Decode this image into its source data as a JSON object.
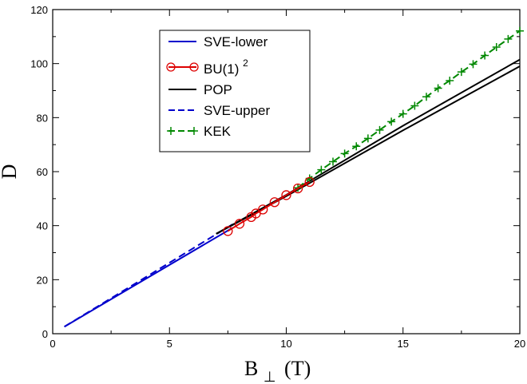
{
  "chart_data": {
    "type": "line",
    "title": "",
    "xlabel": "B",
    "xlabel_sub": "⊥",
    "xlabel_unit": "(T)",
    "ylabel": "D",
    "xlim": [
      0,
      20
    ],
    "ylim": [
      0,
      120
    ],
    "xticks": [
      0,
      5,
      10,
      15,
      20
    ],
    "yticks": [
      0,
      20,
      40,
      60,
      80,
      100,
      120
    ],
    "grid": false,
    "legend_position": "top-left (inside plot)",
    "series": [
      {
        "name": "SVE-lower",
        "color": "#0000cc",
        "style": "solid",
        "marker": "none",
        "x": [
          0.5,
          7.7
        ],
        "y": [
          2.6,
          39.2
        ]
      },
      {
        "name": "BU(1)",
        "name_sup": "2",
        "color": "#dd0000",
        "style": "solid",
        "marker": "circle",
        "x": [
          7.5,
          8.0,
          8.5,
          8.7,
          9.0,
          9.5,
          10.0,
          10.5,
          11.0
        ],
        "y": [
          38.0,
          40.7,
          43.2,
          44.5,
          46.0,
          48.7,
          51.3,
          53.8,
          56.2
        ]
      },
      {
        "name": "POP",
        "color": "#000000",
        "style": "solid",
        "marker": "none",
        "lines": [
          {
            "x": [
              7.0,
              10.0,
              15.0,
              20.0
            ],
            "y": [
              37.0,
              50.9,
              75.3,
              99.0
            ]
          },
          {
            "x": [
              7.0,
              10.0,
              15.0,
              20.0
            ],
            "y": [
              37.0,
              51.4,
              77.0,
              101.5
            ]
          }
        ]
      },
      {
        "name": "SVE-upper",
        "color": "#0000cc",
        "style": "dashed",
        "marker": "none",
        "x": [
          0.5,
          7.7
        ],
        "y": [
          2.6,
          40.5
        ]
      },
      {
        "name": "KEK",
        "color": "#008800",
        "style": "dashed",
        "marker": "plus",
        "x": [
          10.5,
          11.0,
          11.5,
          12.0,
          12.5,
          13.0,
          13.5,
          14.0,
          14.5,
          15.0,
          15.5,
          16.0,
          16.5,
          17.0,
          17.5,
          18.0,
          18.5,
          19.0,
          19.5,
          20.0
        ],
        "y": [
          54.0,
          57.5,
          60.7,
          63.7,
          66.7,
          69.4,
          72.3,
          75.4,
          78.5,
          81.4,
          84.4,
          87.7,
          90.9,
          93.7,
          96.9,
          99.8,
          103.0,
          106.1,
          109.1,
          112.1
        ]
      }
    ]
  }
}
